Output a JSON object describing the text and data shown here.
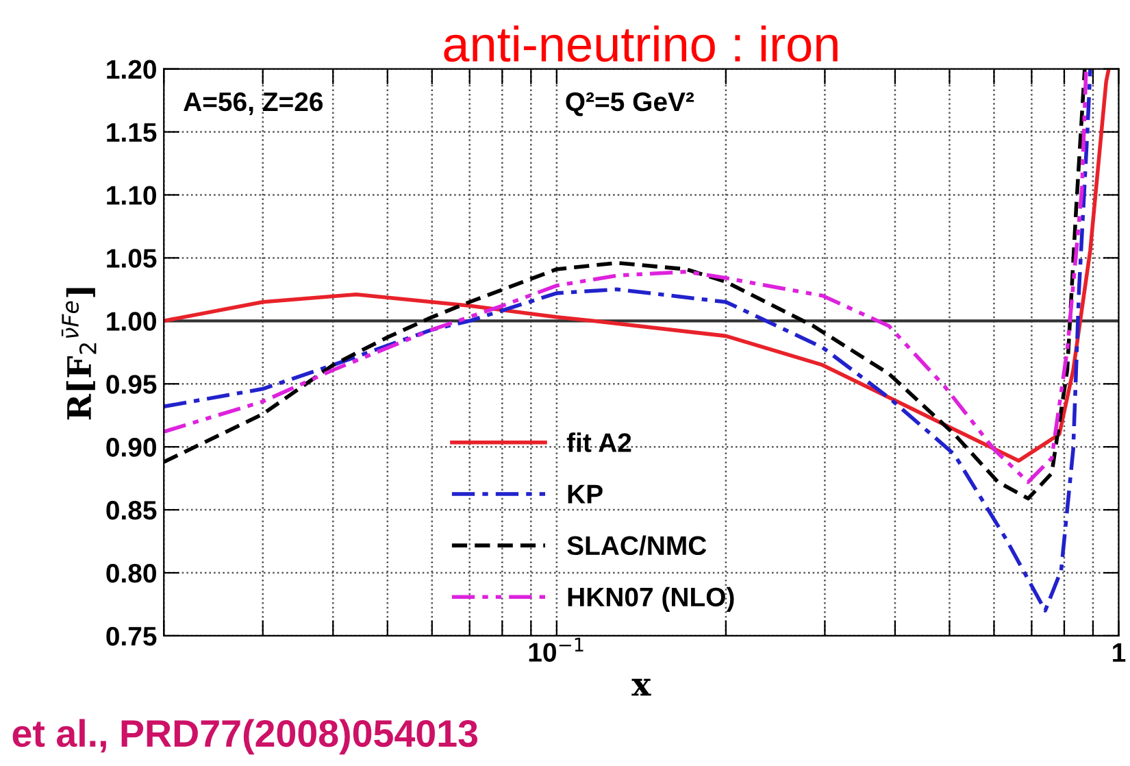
{
  "chart_data": {
    "type": "line",
    "title": "anti-neutrino : iron",
    "xlabel": "x",
    "ylabel": "R[F$_{2}$$^{ν̄Fe}$]",
    "annotations": [
      "A=56, Z=26",
      "Q²=5 GeV²",
      "et al., PRD77(2008)054013"
    ],
    "log": "x",
    "xlim": [
      0.02,
      1
    ],
    "ylim": [
      0.75,
      1.2
    ],
    "xticks": [
      {
        "value": 0.02,
        "label": null
      },
      {
        "value": 0.03,
        "label": null
      },
      {
        "value": 0.04,
        "label": null
      },
      {
        "value": 0.05,
        "label": null
      },
      {
        "value": 0.06,
        "label": null
      },
      {
        "value": 0.07,
        "label": null
      },
      {
        "value": 0.08,
        "label": null
      },
      {
        "value": 0.09,
        "label": null
      },
      {
        "value": 0.1,
        "label": "10$^{−1}$"
      },
      {
        "value": 0.2,
        "label": null
      },
      {
        "value": 0.3,
        "label": null
      },
      {
        "value": 0.4,
        "label": null
      },
      {
        "value": 0.5,
        "label": null
      },
      {
        "value": 0.6,
        "label": null
      },
      {
        "value": 0.7,
        "label": null
      },
      {
        "value": 0.8,
        "label": null
      },
      {
        "value": 0.9,
        "label": null
      },
      1
    ],
    "yticks": [
      {
        "value": 0.75,
        "label": "0.75"
      },
      {
        "value": 0.8,
        "label": "0.80"
      },
      {
        "value": 0.85,
        "label": "0.85"
      },
      {
        "value": 0.9,
        "label": "0.90"
      },
      {
        "value": 0.95,
        "label": "0.95"
      },
      {
        "value": 1.0,
        "label": "1.00"
      },
      {
        "value": 1.05,
        "label": "1.05"
      },
      {
        "value": 1.1,
        "label": "1.10"
      },
      {
        "value": 1.15,
        "label": "1.15"
      },
      {
        "value": 1.2,
        "label": "1.20"
      }
    ],
    "grid": true,
    "legend": "bottom",
    "marker": "none",
    "ref_lines": [
      {
        "axis": "y",
        "value": 1.0,
        "color": "#333333",
        "line_style": "solid"
      }
    ],
    "series": [
      {
        "name": "fit A2",
        "color": "#e8222a",
        "line_style": "solid",
        "x": [
          0.02,
          0.03,
          0.044,
          0.07,
          0.1,
          0.116,
          0.2,
          0.297,
          0.493,
          0.664,
          0.784,
          0.83,
          0.89,
          0.95,
          0.96
        ],
        "values": [
          1.0,
          1.015,
          1.021,
          1.012,
          1.003,
          1.0,
          0.988,
          0.965,
          0.917,
          0.889,
          0.91,
          0.961,
          1.056,
          1.19,
          1.2
        ]
      },
      {
        "name": "KP",
        "color": "#2222cc",
        "line_style": "dashdot",
        "x": [
          0.02,
          0.03,
          0.04,
          0.06,
          0.07,
          0.1,
          0.128,
          0.2,
          0.297,
          0.39,
          0.51,
          0.63,
          0.74,
          0.79,
          0.83,
          0.85,
          0.88,
          0.89
        ],
        "values": [
          0.932,
          0.946,
          0.965,
          0.993,
          1.0,
          1.022,
          1.025,
          1.015,
          0.979,
          0.939,
          0.894,
          0.827,
          0.77,
          0.802,
          0.898,
          1.025,
          1.152,
          1.2
        ]
      },
      {
        "name": "SLAC/NMC",
        "color": "#000000",
        "line_style": "dashed",
        "x": [
          0.02,
          0.03,
          0.04,
          0.05,
          0.06,
          0.07,
          0.1,
          0.128,
          0.17,
          0.2,
          0.286,
          0.39,
          0.51,
          0.61,
          0.69,
          0.76,
          0.81,
          0.84,
          0.87
        ],
        "values": [
          0.888,
          0.926,
          0.965,
          0.987,
          1.003,
          1.015,
          1.041,
          1.046,
          1.041,
          1.031,
          0.996,
          0.958,
          0.91,
          0.872,
          0.859,
          0.879,
          0.961,
          1.089,
          1.2
        ]
      },
      {
        "name": "HKN07 (NLO)",
        "color": "#dd22dd",
        "line_style": "dashdotdot",
        "x": [
          0.02,
          0.03,
          0.04,
          0.06,
          0.08,
          0.1,
          0.128,
          0.17,
          0.2,
          0.297,
          0.39,
          0.49,
          0.6,
          0.69,
          0.76,
          0.81,
          0.86,
          0.875
        ],
        "values": [
          0.912,
          0.936,
          0.961,
          0.993,
          1.012,
          1.028,
          1.036,
          1.039,
          1.034,
          1.02,
          0.996,
          0.948,
          0.898,
          0.872,
          0.891,
          0.977,
          1.104,
          1.2
        ]
      }
    ]
  }
}
